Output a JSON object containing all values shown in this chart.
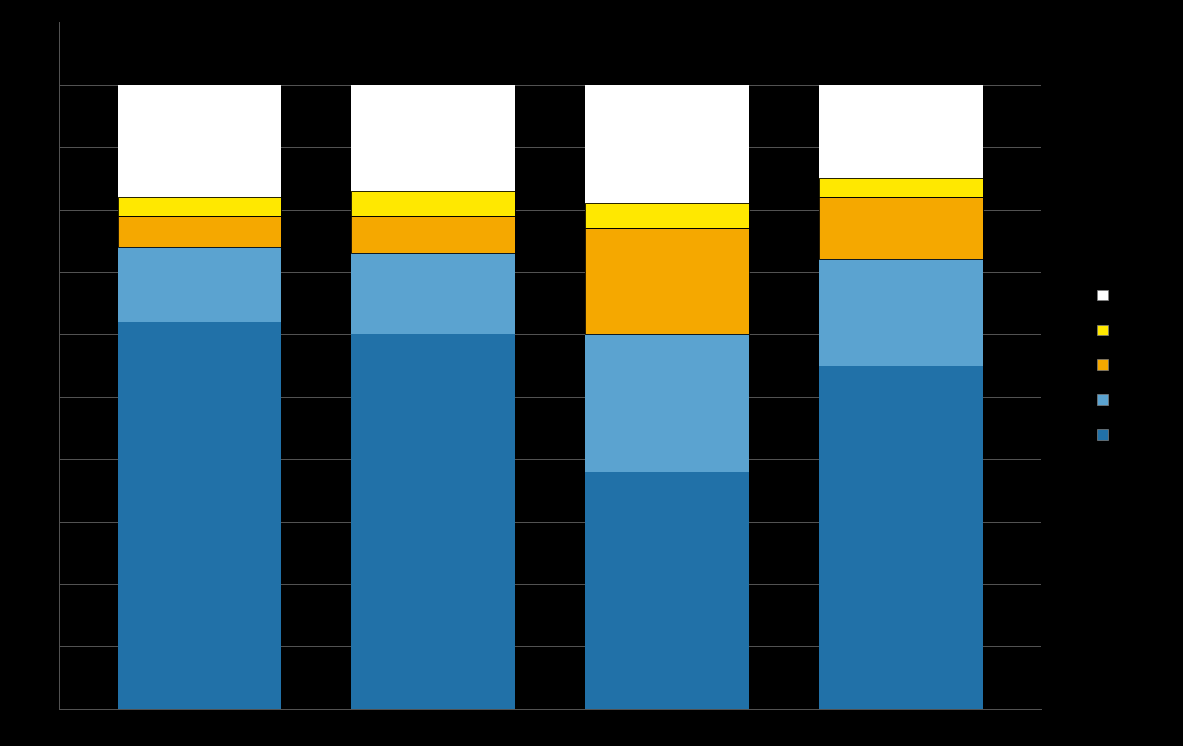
{
  "categories": [
    "",
    "",
    "",
    ""
  ],
  "layers": [
    {
      "label": "",
      "color": "#2171A8",
      "values": [
        62,
        60,
        38,
        55
      ]
    },
    {
      "label": "",
      "color": "#5BA3D0",
      "values": [
        12,
        13,
        22,
        17
      ]
    },
    {
      "label": "",
      "color": "#F5A800",
      "values": [
        5,
        6,
        17,
        10
      ]
    },
    {
      "label": "",
      "color": "#FFE800",
      "values": [
        3,
        4,
        4,
        3
      ]
    },
    {
      "label": "",
      "color": "#FFFFFF",
      "values": [
        18,
        17,
        19,
        15
      ]
    }
  ],
  "background_color": "#000000",
  "plot_area_color": "#000000",
  "bar_width": 0.7,
  "ylim": [
    0,
    110
  ],
  "xlim": [
    -0.6,
    3.6
  ],
  "grid_color": "#555555",
  "n_gridlines": 11,
  "legend_colors": [
    "#FFFFFF",
    "#FFE800",
    "#F5A800",
    "#5BA3D0",
    "#2171A8"
  ]
}
